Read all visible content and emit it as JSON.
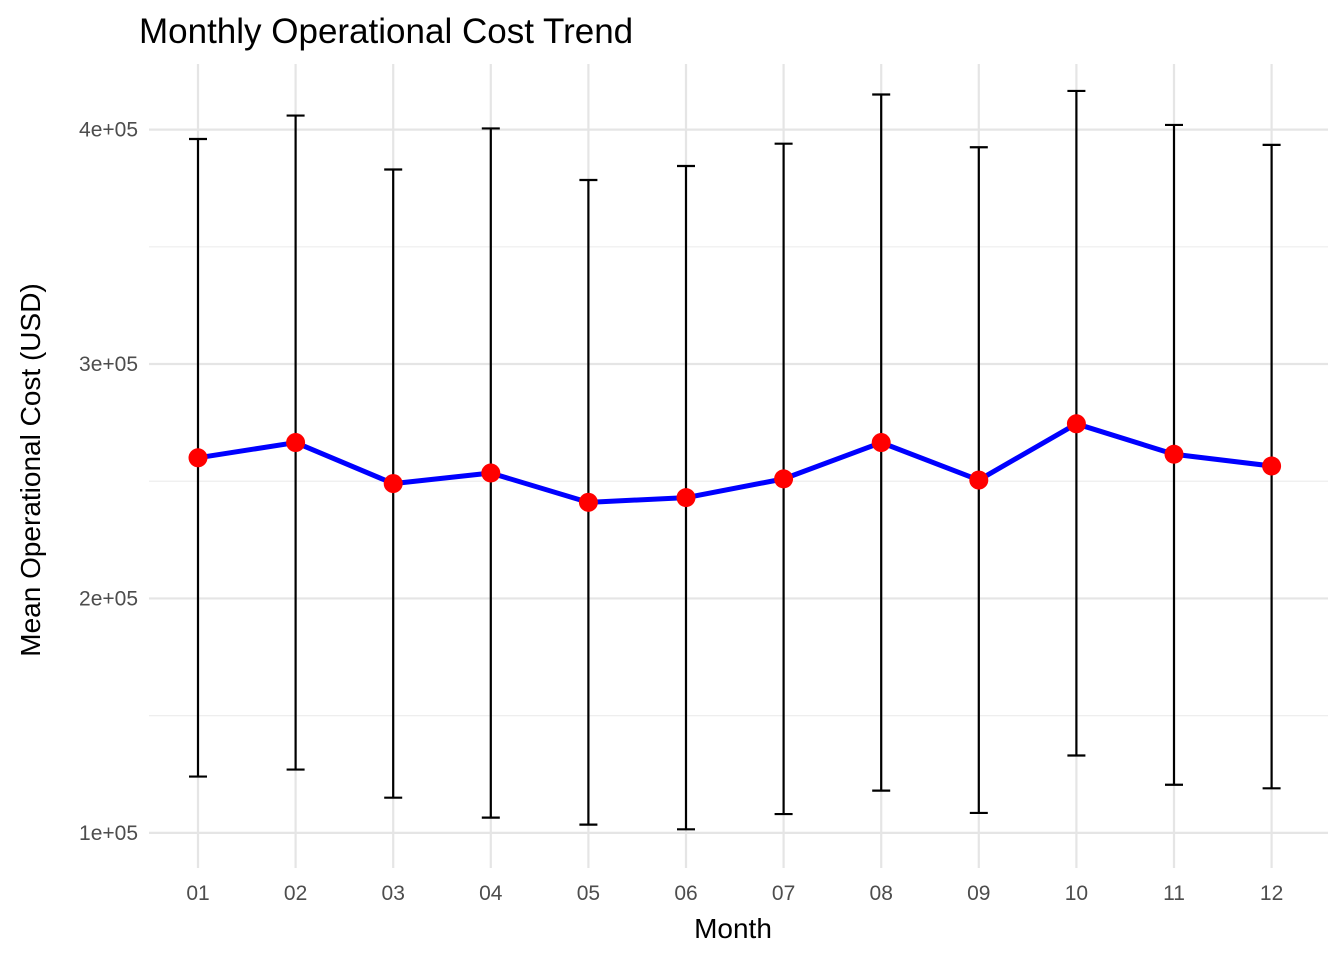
{
  "chart_data": {
    "type": "line",
    "title": "Monthly Operational Cost Trend",
    "xlabel": "Month",
    "ylabel": "Mean Operational Cost (USD)",
    "categories": [
      "01",
      "02",
      "03",
      "04",
      "05",
      "06",
      "07",
      "08",
      "09",
      "10",
      "11",
      "12"
    ],
    "series": [
      {
        "values": [
          260000,
          266500,
          249000,
          253500,
          241000,
          243000,
          251000,
          266500,
          250500,
          274500,
          261500,
          256500
        ],
        "error_low": [
          124000,
          127000,
          115000,
          106500,
          103500,
          101500,
          108000,
          118000,
          108500,
          133000,
          120500,
          119000
        ],
        "error_high": [
          396000,
          406000,
          383000,
          400500,
          378500,
          384500,
          394000,
          415000,
          392500,
          416500,
          402000,
          393500
        ],
        "line_color": "#0000ff",
        "point_color": "#ff0000",
        "errorbar_color": "#000000"
      }
    ],
    "ylim": [
      85000,
      428000
    ],
    "yticks": [
      100000,
      200000,
      300000,
      400000
    ],
    "ytick_labels": [
      "1e+05",
      "2e+05",
      "3e+05",
      "4e+05"
    ],
    "grid": true,
    "legend": "none"
  }
}
